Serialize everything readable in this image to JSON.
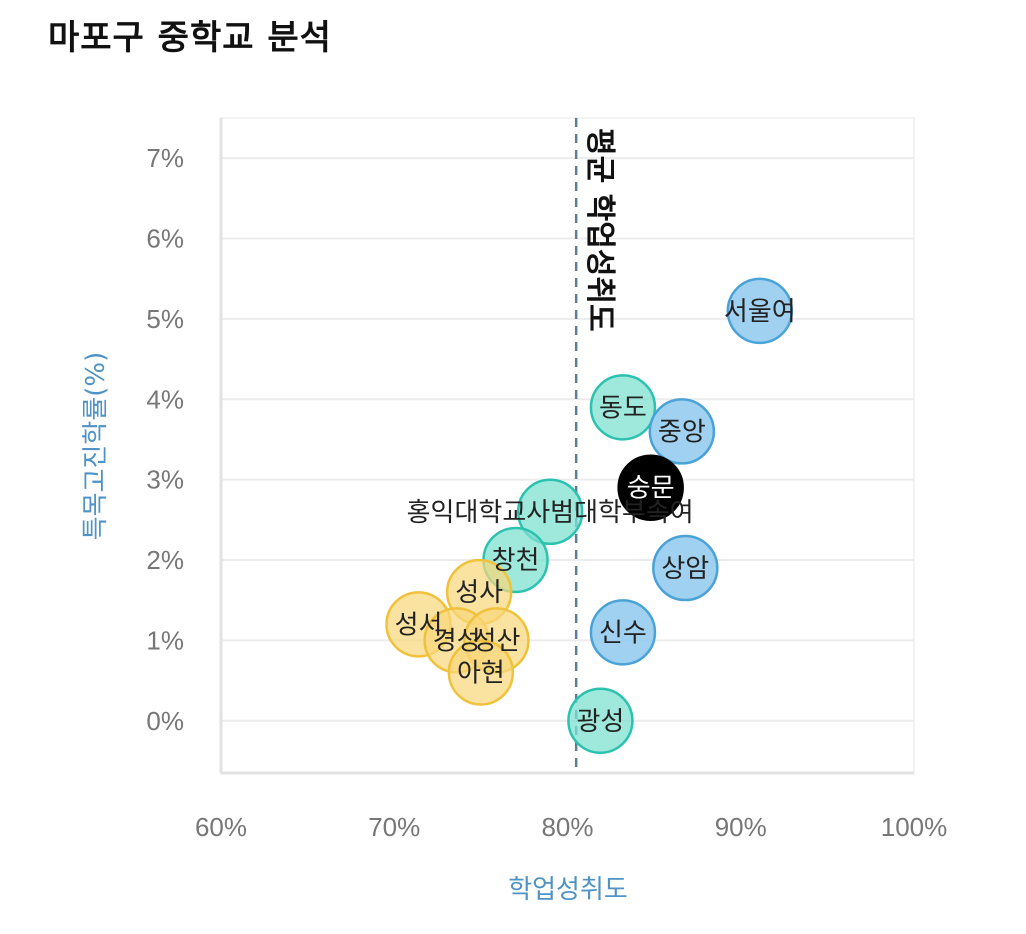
{
  "title": "마포구 중학교 분석",
  "chart_data": {
    "type": "scatter",
    "xlabel": "학업성취도",
    "ylabel": "특목고진학률(%)",
    "xlim": [
      60,
      100
    ],
    "ylim": [
      -0.65,
      7.5
    ],
    "x_ticks": [
      "60%",
      "70%",
      "80%",
      "90%",
      "100%"
    ],
    "y_ticks": [
      "0%",
      "1%",
      "2%",
      "3%",
      "4%",
      "5%",
      "6%",
      "7%"
    ],
    "reference_line": {
      "x": 80.5,
      "label": "평균 학업성취도"
    },
    "colors": {
      "blue": "#8fc9ef",
      "blue_stroke": "#4aa3d6",
      "teal": "#7fe0d0",
      "teal_stroke": "#2cc2b0",
      "yellow": "#f8d77b",
      "yellow_stroke": "#f0c23c",
      "highlight": "#000000"
    },
    "points": [
      {
        "name": "서울여",
        "x": 91.1,
        "y": 5.1,
        "group": "blue"
      },
      {
        "name": "동도",
        "x": 83.2,
        "y": 3.9,
        "group": "teal"
      },
      {
        "name": "중앙",
        "x": 86.6,
        "y": 3.6,
        "group": "blue"
      },
      {
        "name": "숭문",
        "x": 84.8,
        "y": 2.9,
        "group": "highlight"
      },
      {
        "name": "홍익대학교사범대학부속여",
        "x": 79.0,
        "y": 2.6,
        "group": "teal"
      },
      {
        "name": "창천",
        "x": 77.0,
        "y": 2.0,
        "group": "teal"
      },
      {
        "name": "상암",
        "x": 86.8,
        "y": 1.9,
        "group": "blue"
      },
      {
        "name": "성사",
        "x": 74.9,
        "y": 1.6,
        "group": "yellow"
      },
      {
        "name": "성서",
        "x": 71.4,
        "y": 1.2,
        "group": "yellow"
      },
      {
        "name": "신수",
        "x": 83.2,
        "y": 1.1,
        "group": "blue"
      },
      {
        "name": "경성",
        "x": 73.6,
        "y": 1.0,
        "group": "yellow"
      },
      {
        "name": "성산",
        "x": 75.9,
        "y": 1.0,
        "group": "yellow"
      },
      {
        "name": "아현",
        "x": 75.0,
        "y": 0.6,
        "group": "yellow"
      },
      {
        "name": "광성",
        "x": 81.9,
        "y": 0.0,
        "group": "teal"
      }
    ]
  }
}
